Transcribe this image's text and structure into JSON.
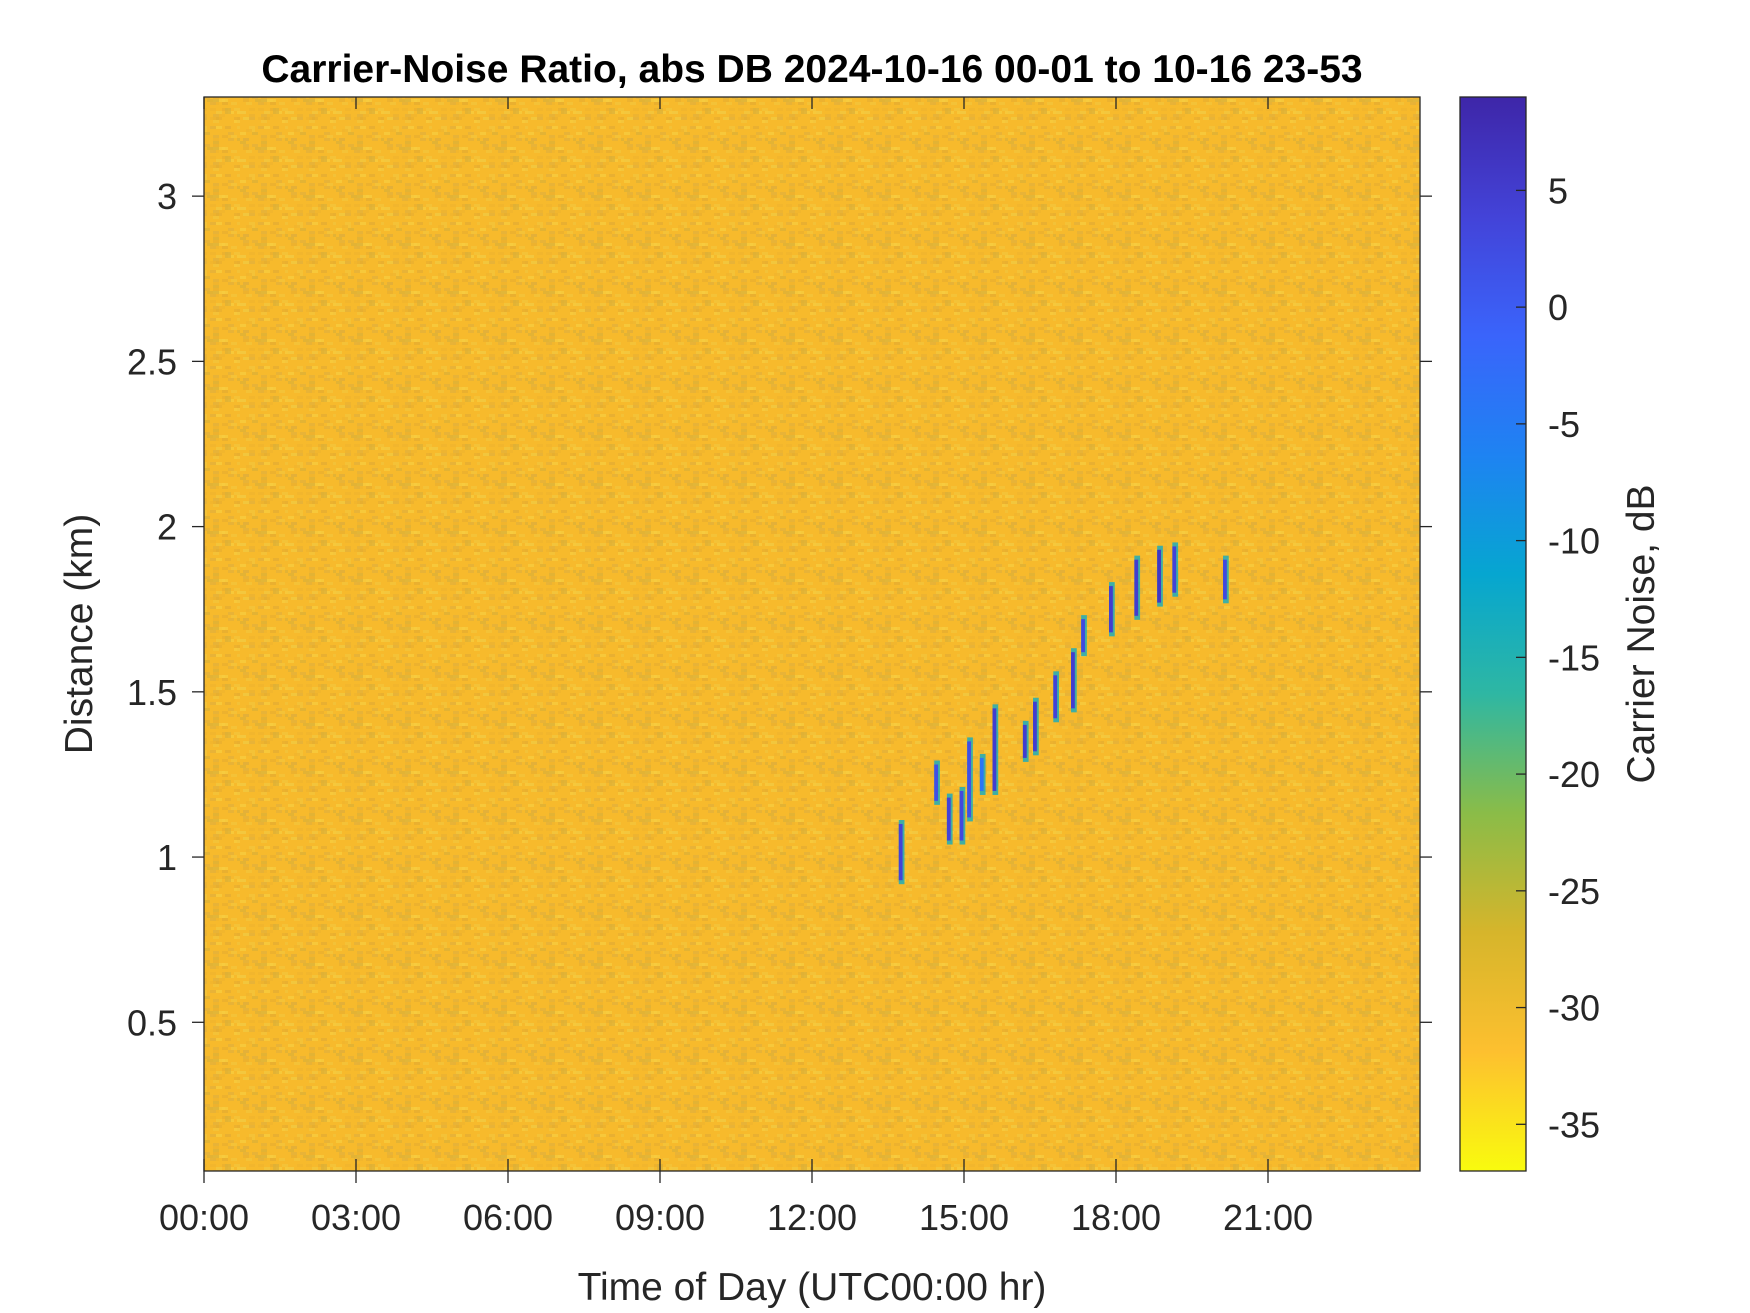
{
  "chart_data": {
    "type": "heatmap",
    "title": "Carrier-Noise Ratio, abs DB 2024-10-16 00-01 to 10-16 23-53",
    "xlabel": "Time of Day (UTC00:00 hr)",
    "ylabel": "Distance (km)",
    "x_ticks": [
      {
        "value": 0,
        "label": "00:00"
      },
      {
        "value": 3,
        "label": "03:00"
      },
      {
        "value": 6,
        "label": "06:00"
      },
      {
        "value": 9,
        "label": "09:00"
      },
      {
        "value": 12,
        "label": "12:00"
      },
      {
        "value": 15,
        "label": "15:00"
      },
      {
        "value": 18,
        "label": "18:00"
      },
      {
        "value": 21,
        "label": "21:00"
      }
    ],
    "y_ticks": [
      {
        "value": 0.5,
        "label": "0.5"
      },
      {
        "value": 1,
        "label": "1"
      },
      {
        "value": 1.5,
        "label": "1.5"
      },
      {
        "value": 2,
        "label": "2"
      },
      {
        "value": 2.5,
        "label": "2.5"
      },
      {
        "value": 3,
        "label": "3"
      }
    ],
    "xlim": [
      0,
      24
    ],
    "ylim": [
      0.05,
      3.3
    ],
    "colorbar": {
      "label": "Carrier Noise, dB",
      "range": [
        -37,
        9
      ],
      "ticks": [
        {
          "value": 5,
          "label": "5"
        },
        {
          "value": 0,
          "label": "0"
        },
        {
          "value": -5,
          "label": "-5"
        },
        {
          "value": -10,
          "label": "-10"
        },
        {
          "value": -15,
          "label": "-15"
        },
        {
          "value": -20,
          "label": "-20"
        },
        {
          "value": -25,
          "label": "-25"
        },
        {
          "value": -30,
          "label": "-30"
        },
        {
          "value": -35,
          "label": "-35"
        }
      ],
      "colormap": [
        "#f9fb0e",
        "#fdc02f",
        "#d6b52b",
        "#8abc48",
        "#2eb7a3",
        "#06a6d0",
        "#1e83f2",
        "#3a64fb",
        "#4343d8",
        "#3e26a8"
      ]
    },
    "background_value_db": -31,
    "background_color": "#f7ba2c",
    "features": [
      {
        "time_hr": 13.75,
        "distance_km": [
          0.93,
          1.1
        ],
        "value_db": 4
      },
      {
        "time_hr": 14.45,
        "distance_km": [
          1.17,
          1.28
        ],
        "value_db": 2
      },
      {
        "time_hr": 14.7,
        "distance_km": [
          1.05,
          1.18
        ],
        "value_db": 4
      },
      {
        "time_hr": 14.95,
        "distance_km": [
          1.05,
          1.2
        ],
        "value_db": 3
      },
      {
        "time_hr": 15.1,
        "distance_km": [
          1.12,
          1.35
        ],
        "value_db": 2
      },
      {
        "time_hr": 15.35,
        "distance_km": [
          1.2,
          1.3
        ],
        "value_db": -4
      },
      {
        "time_hr": 15.6,
        "distance_km": [
          1.2,
          1.45
        ],
        "value_db": 5
      },
      {
        "time_hr": 16.2,
        "distance_km": [
          1.3,
          1.4
        ],
        "value_db": 5
      },
      {
        "time_hr": 16.4,
        "distance_km": [
          1.32,
          1.47
        ],
        "value_db": 5
      },
      {
        "time_hr": 16.8,
        "distance_km": [
          1.42,
          1.55
        ],
        "value_db": 4
      },
      {
        "time_hr": 17.15,
        "distance_km": [
          1.45,
          1.62
        ],
        "value_db": 5
      },
      {
        "time_hr": 17.35,
        "distance_km": [
          1.62,
          1.72
        ],
        "value_db": 3
      },
      {
        "time_hr": 17.9,
        "distance_km": [
          1.68,
          1.82
        ],
        "value_db": 5
      },
      {
        "time_hr": 18.4,
        "distance_km": [
          1.73,
          1.9
        ],
        "value_db": 5
      },
      {
        "time_hr": 18.85,
        "distance_km": [
          1.77,
          1.93
        ],
        "value_db": 6
      },
      {
        "time_hr": 19.15,
        "distance_km": [
          1.8,
          1.94
        ],
        "value_db": 4
      },
      {
        "time_hr": 20.15,
        "distance_km": [
          1.78,
          1.9
        ],
        "value_db": 3
      }
    ]
  }
}
